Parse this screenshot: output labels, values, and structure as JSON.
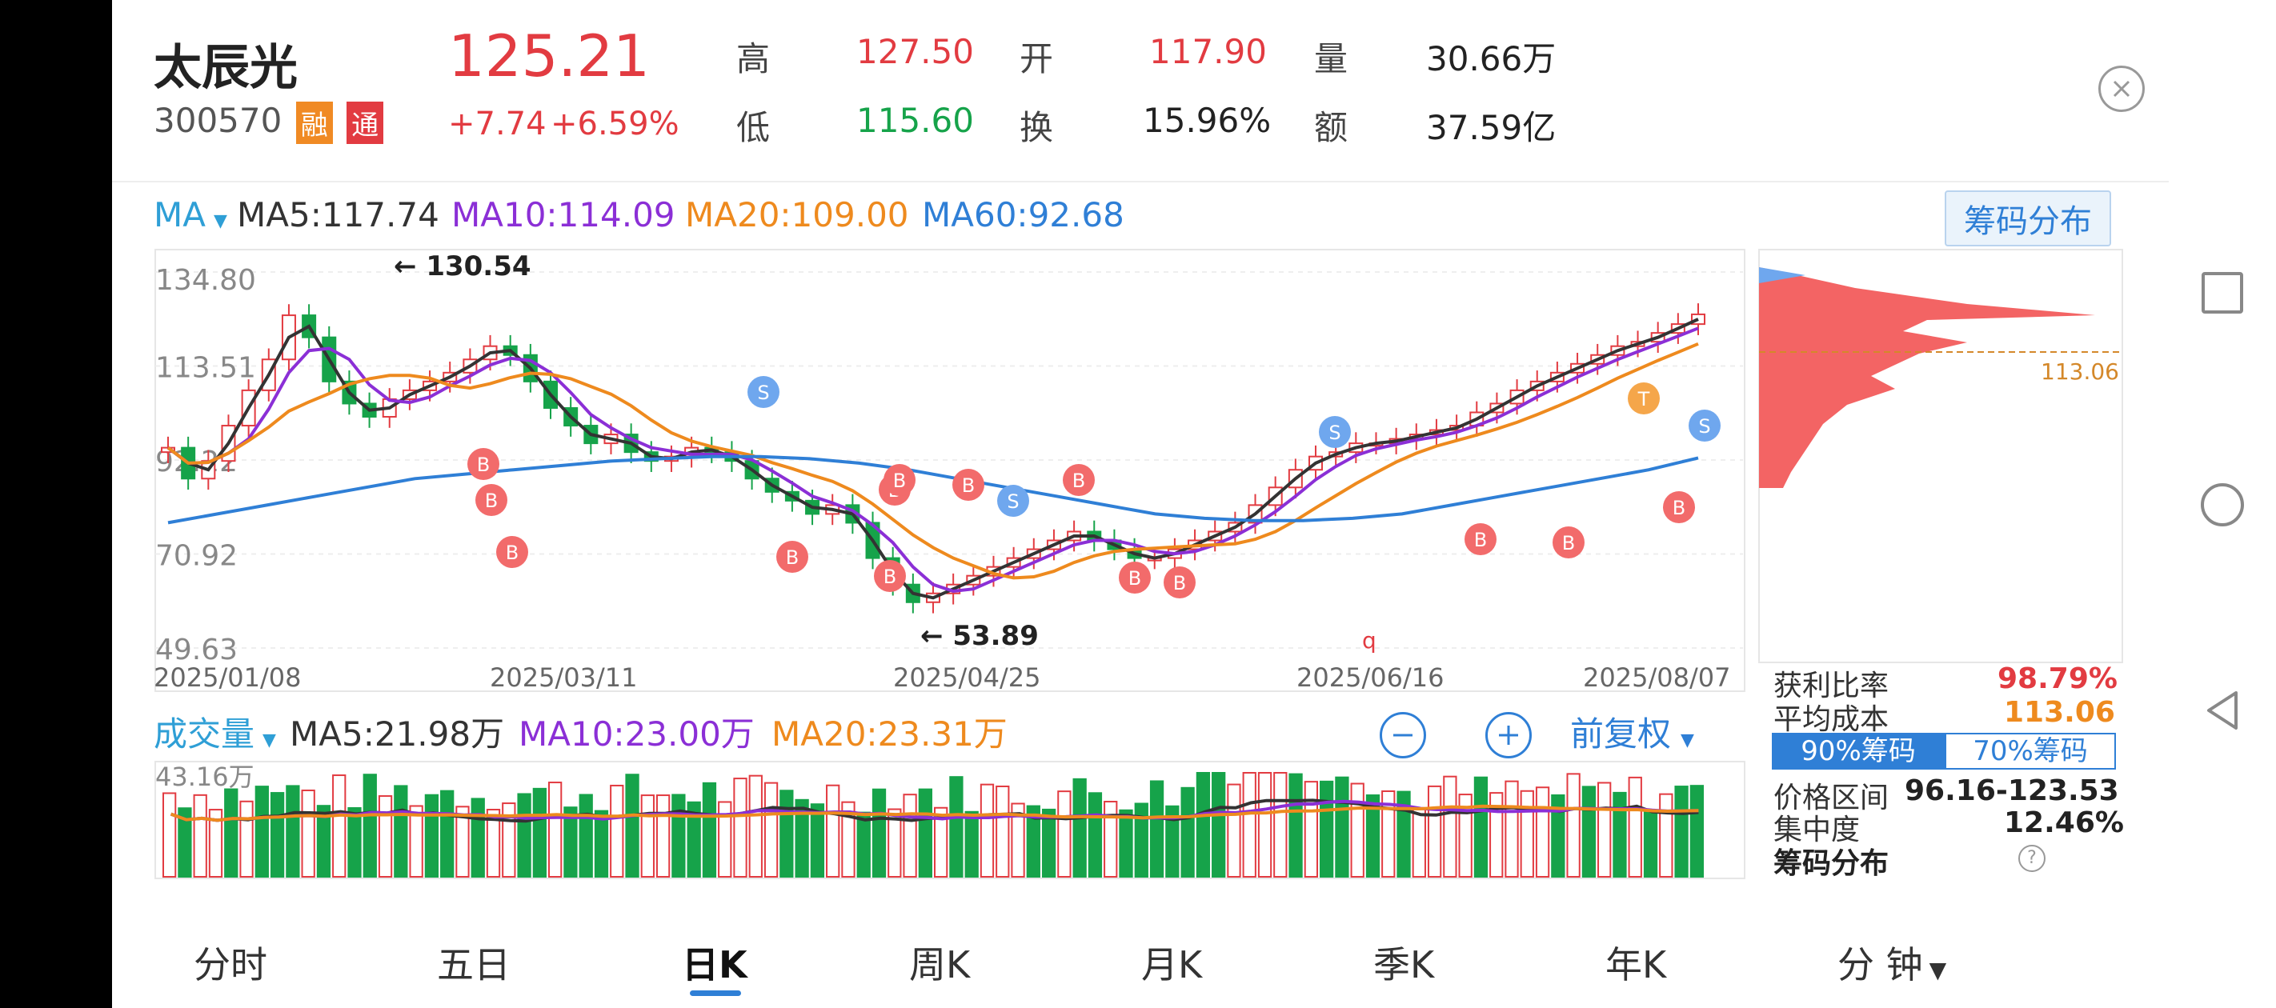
{
  "header": {
    "name": "太辰光",
    "code": "300570",
    "badge_rong": "融",
    "badge_tong": "通",
    "price": "125.21",
    "change": "+7.74",
    "change_pct": "+6.59%",
    "stats": [
      {
        "label": "高",
        "value": "127.50",
        "color": "red"
      },
      {
        "label": "开",
        "value": "117.90",
        "color": "red"
      },
      {
        "label": "量",
        "value": "30.66万",
        "color": "black"
      },
      {
        "label": "低",
        "value": "115.60",
        "color": "green"
      },
      {
        "label": "换",
        "value": "15.96%",
        "color": "black"
      },
      {
        "label": "额",
        "value": "37.59亿",
        "color": "black"
      }
    ]
  },
  "ma_bar": {
    "selector": "MA",
    "ma5": "MA5:117.74",
    "ma10": "MA10:114.09",
    "ma20": "MA20:109.00",
    "ma60": "MA60:92.68",
    "chip_button": "筹码分布"
  },
  "chart": {
    "y_labels": [
      "134.80",
      "113.51",
      "92.22",
      "70.92",
      "49.63"
    ],
    "high_note": "← 130.54",
    "low_note": "← 53.89",
    "marker_q": "q",
    "x_labels": [
      "2025/01/08",
      "2025/03/11",
      "2025/04/25",
      "2025/06/16",
      "2025/08/07"
    ],
    "buy_marker": "B",
    "sell_marker": "S",
    "t_marker": "T",
    "chip_price": "113.06"
  },
  "volume_bar": {
    "selector": "成交量",
    "ma5": "MA5:21.98万",
    "ma10": "MA10:23.00万",
    "ma20": "MA20:23.31万",
    "max_label": "43.16万",
    "adjust": "前复权"
  },
  "chip_panel": {
    "profit_label": "获利比率",
    "profit_value": "98.79%",
    "avg_label": "平均成本",
    "avg_value": "113.06",
    "tab90": "90%筹码",
    "tab70": "70%筹码",
    "range_label": "价格区间",
    "range_value": "96.16-123.53",
    "conc_label": "集中度",
    "conc_value": "12.46%",
    "footer": "筹码分布",
    "help": "?"
  },
  "tabs": [
    "分时",
    "五日",
    "日K",
    "周K",
    "月K",
    "季K",
    "年K",
    "分 钟"
  ],
  "active_tab": "日K",
  "colors": {
    "up": "#e23b41",
    "down": "#16a34a",
    "ma5": "#333333",
    "ma10": "#8b2fd6",
    "ma20": "#ee8a1e",
    "ma60": "#2f7fd6",
    "accent": "#2f7fd6"
  },
  "chart_data": {
    "type": "candlestick",
    "title": "",
    "x_range": [
      "2025/01/08",
      "2025/08/07"
    ],
    "ylim": [
      49.63,
      134.8
    ],
    "y_ticks": [
      134.8,
      113.51,
      92.22,
      70.92,
      49.63
    ],
    "period_high": 130.54,
    "period_low": 53.89,
    "closes_approx": [
      95,
      88,
      92,
      100,
      108,
      115,
      125,
      120,
      110,
      105,
      102,
      106,
      108,
      110,
      112,
      115,
      118,
      116,
      110,
      104,
      100,
      96,
      98,
      94,
      92,
      93,
      95,
      94,
      92,
      88,
      85,
      83,
      80,
      82,
      78,
      70,
      64,
      60,
      62,
      64,
      66,
      68,
      70,
      72,
      74,
      76,
      74,
      72,
      70,
      70,
      72,
      74,
      76,
      78,
      82,
      86,
      90,
      93,
      94,
      96,
      96,
      97,
      98,
      99,
      100,
      103,
      105,
      108,
      110,
      112,
      114,
      116,
      118,
      119,
      121,
      123,
      125.21
    ],
    "ma60_approx": [
      78,
      80,
      82,
      84,
      86,
      88,
      89,
      90,
      91,
      92,
      92.5,
      93,
      93,
      92.5,
      91.5,
      90,
      88,
      86,
      84,
      82,
      80,
      79,
      78.5,
      78.5,
      79,
      80,
      82,
      84,
      86,
      88,
      90,
      92.68
    ],
    "volume_max_label": 43.16,
    "chip_profit_ratio": 98.79,
    "chip_avg_cost": 113.06,
    "chip_90_range": [
      96.16,
      123.53
    ],
    "chip_concentration": 12.46
  }
}
